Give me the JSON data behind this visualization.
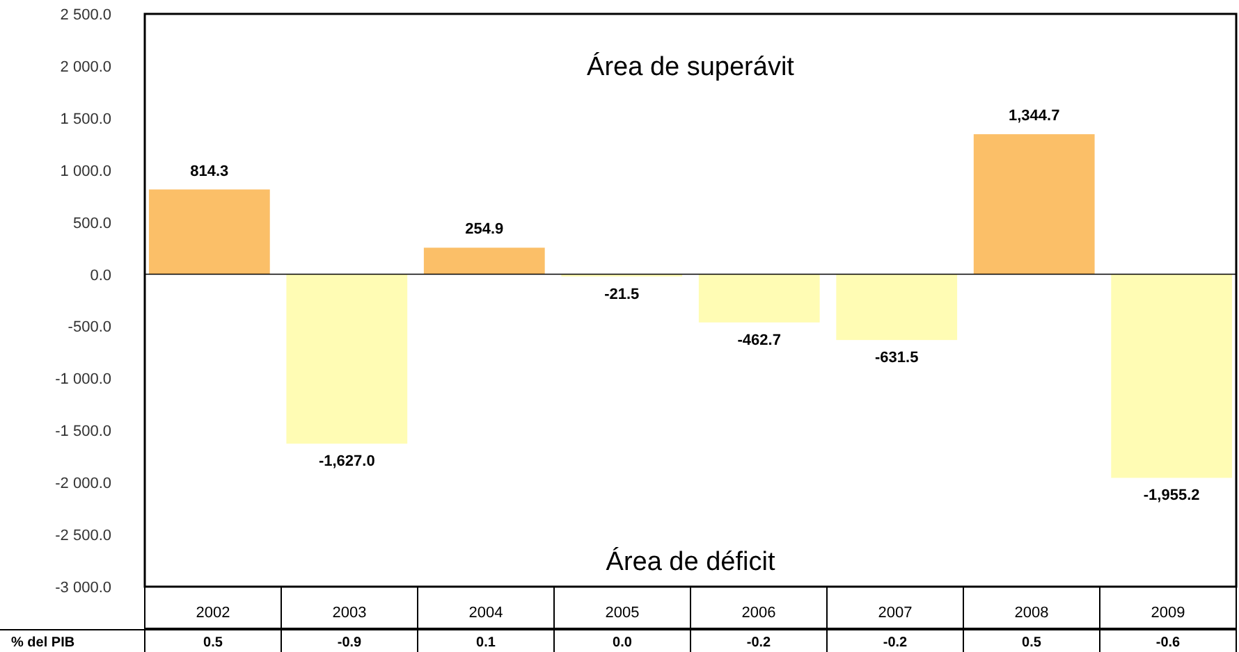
{
  "chart_data": {
    "type": "bar",
    "categories": [
      "2002",
      "2003",
      "2004",
      "2005",
      "2006",
      "2007",
      "2008",
      "2009"
    ],
    "values": [
      814.3,
      -1627.0,
      254.9,
      -21.5,
      -462.7,
      -631.5,
      1344.7,
      -1955.2
    ],
    "colors": [
      "#fbbf68",
      "#fffcb4",
      "#fbbf68",
      "#fffcb4",
      "#fffcb4",
      "#fffcb4",
      "#fbbf68",
      "#fffcb4"
    ],
    "value_labels": [
      "814.3",
      "-1,627.0",
      "254.9",
      "-21.5",
      "-462.7",
      "-631.5",
      "1,344.7",
      "-1,955.2"
    ],
    "ylim": [
      -3000,
      2500
    ],
    "yticks": [
      {
        "value": 2500,
        "label": "2 500.0"
      },
      {
        "value": 2000,
        "label": "2 000.0"
      },
      {
        "value": 1500,
        "label": "1 500.0"
      },
      {
        "value": 1000,
        "label": "1 000.0"
      },
      {
        "value": 500,
        "label": "500.0"
      },
      {
        "value": 0,
        "label": "0.0"
      },
      {
        "value": -500,
        "label": "-500.0"
      },
      {
        "value": -1000,
        "label": "-1 000.0"
      },
      {
        "value": -1500,
        "label": "-1 500.0"
      },
      {
        "value": -2000,
        "label": "-2 000.0"
      },
      {
        "value": -2500,
        "label": "-2 500.0"
      },
      {
        "value": -3000,
        "label": "-3 000.0"
      }
    ],
    "annotations": [
      "Área de superávit",
      "Área de déficit",
      "% del PIB",
      "0.5",
      "-0.9",
      "0.1",
      "0.0",
      "-0.2",
      "-0.2",
      "0.5",
      "-0.6"
    ]
  }
}
